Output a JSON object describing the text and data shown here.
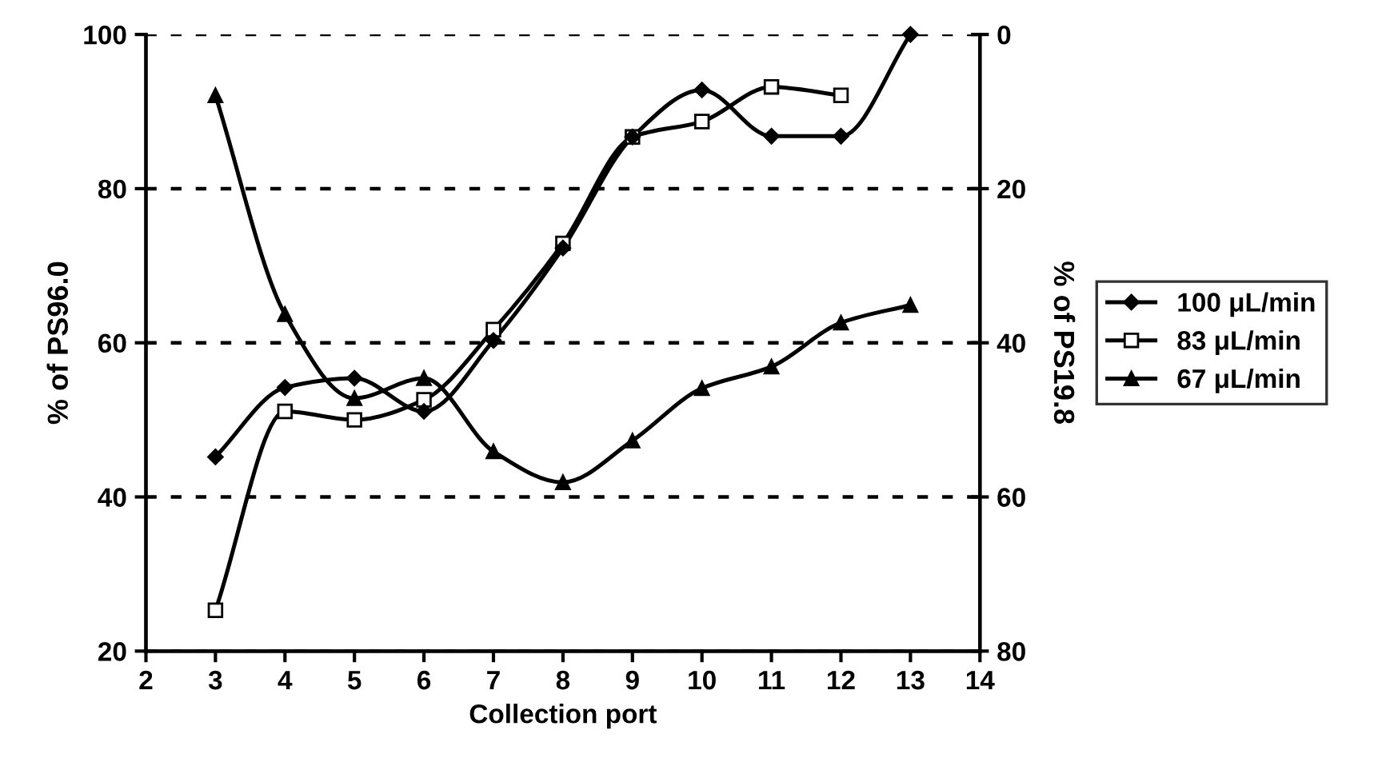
{
  "chart_data": {
    "type": "line",
    "xlabel": "Collection port",
    "ylabel": "% of PS96.0",
    "y2label": "% of PS19.8",
    "xlim": [
      2,
      14
    ],
    "xticks": [
      2,
      3,
      4,
      5,
      6,
      7,
      8,
      9,
      10,
      11,
      12,
      13,
      14
    ],
    "ylim": [
      20,
      100
    ],
    "yticks": [
      20,
      40,
      60,
      80,
      100
    ],
    "y2lim": [
      80,
      0
    ],
    "y2ticks": [
      0,
      20,
      40,
      60,
      80
    ],
    "grid": "y",
    "legend": "right",
    "line_style": "solid",
    "series": [
      {
        "name": "100 μL/min",
        "color": "#000000",
        "marker": "diamond",
        "x": [
          3,
          4,
          5,
          6,
          7,
          8,
          9,
          10,
          11,
          12,
          13
        ],
        "values": [
          45.2,
          54.2,
          55.4,
          51.1,
          60.3,
          72.3,
          86.7,
          92.8,
          86.8,
          86.8,
          100
        ]
      },
      {
        "name": "83 μL/min",
        "color": "#000000",
        "marker": "square",
        "x": [
          3,
          4,
          5,
          6,
          7,
          8,
          9,
          10,
          11,
          12
        ],
        "values": [
          25.3,
          51.1,
          50.0,
          52.6,
          61.7,
          72.9,
          86.7,
          88.7,
          93.2,
          92.1
        ]
      },
      {
        "name": "67 μL/min",
        "color": "#000000",
        "marker": "triangle",
        "x": [
          3,
          4,
          5,
          6,
          7,
          8,
          9,
          10,
          11,
          12,
          13
        ],
        "values": [
          92.1,
          63.7,
          52.8,
          55.4,
          45.9,
          41.9,
          47.3,
          54.1,
          56.9,
          62.6,
          64.9
        ]
      }
    ]
  }
}
